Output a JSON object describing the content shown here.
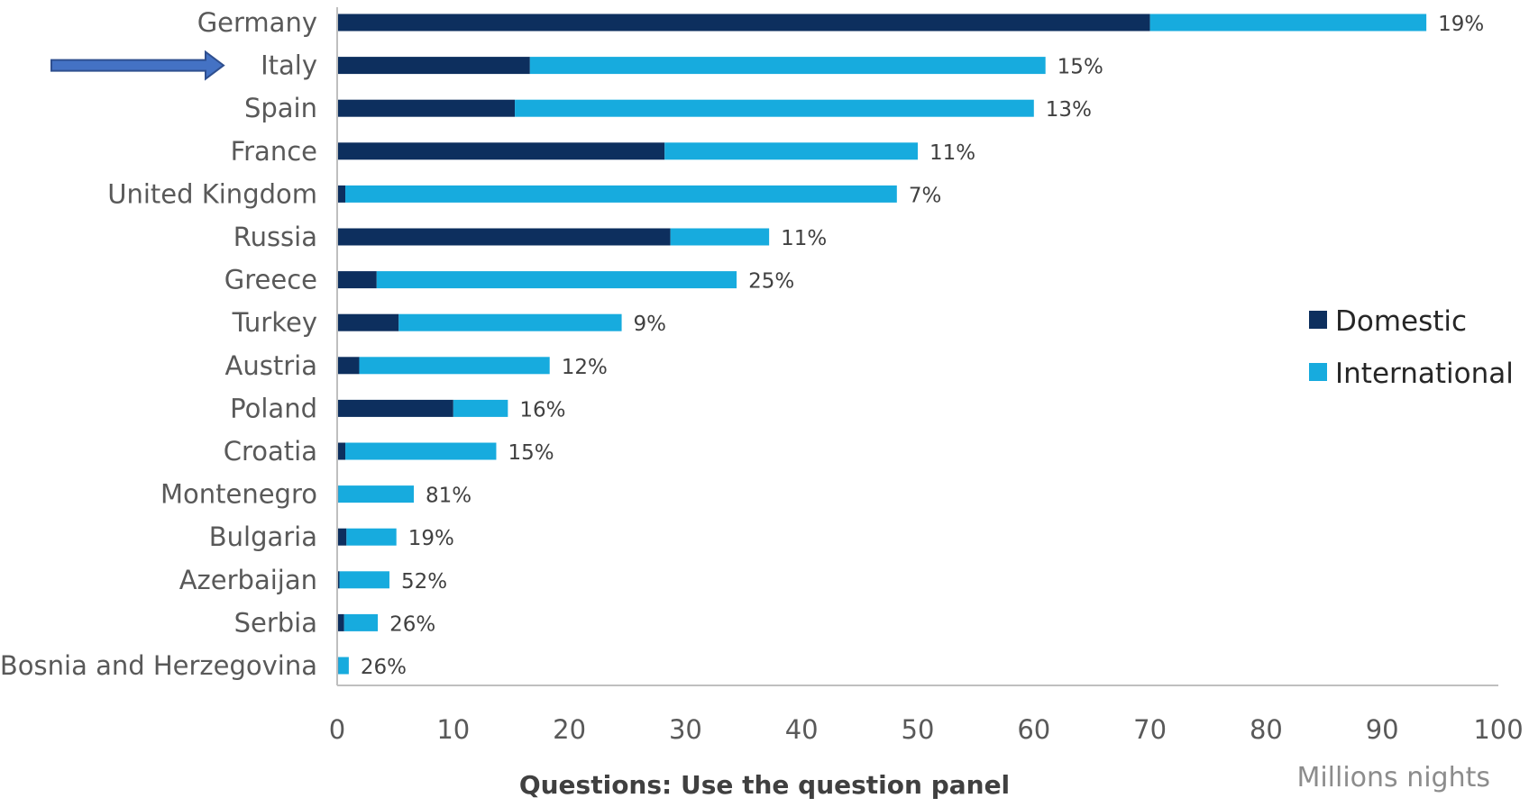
{
  "chart_data": {
    "type": "bar",
    "orientation": "horizontal",
    "stacked": true,
    "categories": [
      "Germany",
      "Italy",
      "Spain",
      "France",
      "United Kingdom",
      "Russia",
      "Greece",
      "Turkey",
      "Austria",
      "Poland",
      "Croatia",
      "Montenegro",
      "Bulgaria",
      "Azerbaijan",
      "Serbia",
      "Bosnia and Herzegovina"
    ],
    "series": [
      {
        "name": "Domestic",
        "color": "#0d2f5e",
        "values": [
          70.0,
          16.6,
          15.3,
          28.2,
          0.7,
          28.7,
          3.4,
          5.3,
          1.9,
          10.0,
          0.7,
          0.1,
          0.8,
          0.2,
          0.6,
          0.1
        ]
      },
      {
        "name": "International",
        "color": "#17abde",
        "values": [
          23.8,
          44.4,
          44.7,
          21.8,
          47.5,
          8.5,
          31.0,
          19.2,
          16.4,
          4.7,
          13.0,
          6.5,
          4.3,
          4.3,
          2.9,
          0.9
        ]
      }
    ],
    "data_labels": [
      "19%",
      "15%",
      "13%",
      "11%",
      "7%",
      "11%",
      "25%",
      "9%",
      "12%",
      "16%",
      "15%",
      "81%",
      "19%",
      "52%",
      "26%",
      "26%"
    ],
    "xlim": [
      0,
      100
    ],
    "xticks": [
      "0",
      "10",
      "20",
      "30",
      "40",
      "50",
      "60",
      "70",
      "80",
      "90",
      "100"
    ],
    "xlabel": "Millions nights",
    "legend_position": "right",
    "grid": false,
    "highlight_arrow": "Italy"
  },
  "footer_text": "Questions: Use the question panel"
}
